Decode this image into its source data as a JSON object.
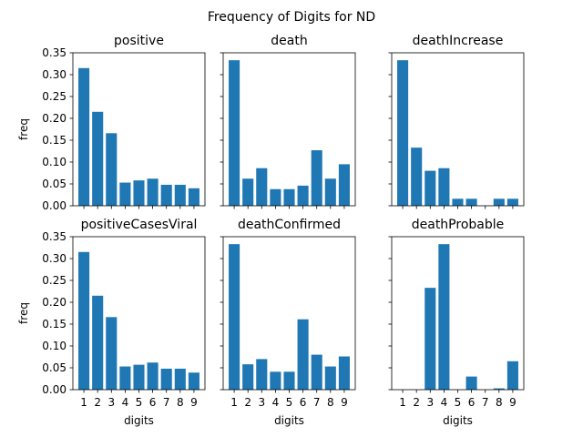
{
  "title": "Frequency of Digits for ND",
  "chart_data": [
    {
      "type": "bar",
      "title": "positive",
      "categories": [
        "1",
        "2",
        "3",
        "4",
        "5",
        "6",
        "7",
        "8",
        "9"
      ],
      "values": [
        0.315,
        0.215,
        0.166,
        0.053,
        0.058,
        0.062,
        0.048,
        0.048,
        0.04
      ],
      "xlabel": "",
      "ylabel": "freq",
      "ylim": [
        0,
        0.35
      ],
      "yticks": [
        "0.00",
        "0.05",
        "0.10",
        "0.15",
        "0.20",
        "0.25",
        "0.30",
        "0.35"
      ],
      "show_ytick_labels": true,
      "show_xtick_labels": false
    },
    {
      "type": "bar",
      "title": "death",
      "categories": [
        "1",
        "2",
        "3",
        "4",
        "5",
        "6",
        "7",
        "8",
        "9"
      ],
      "values": [
        0.333,
        0.062,
        0.086,
        0.038,
        0.038,
        0.046,
        0.127,
        0.062,
        0.095
      ],
      "xlabel": "",
      "ylabel": "",
      "ylim": [
        0,
        0.35
      ],
      "show_ytick_labels": false,
      "show_xtick_labels": false
    },
    {
      "type": "bar",
      "title": "deathIncrease",
      "categories": [
        "1",
        "2",
        "3",
        "4",
        "5",
        "6",
        "7",
        "8",
        "9"
      ],
      "values": [
        0.333,
        0.133,
        0.08,
        0.086,
        0.016,
        0.016,
        0.0,
        0.016,
        0.016
      ],
      "xlabel": "",
      "ylabel": "",
      "ylim": [
        0,
        0.35
      ],
      "show_ytick_labels": false,
      "show_xtick_labels": false
    },
    {
      "type": "bar",
      "title": "positiveCasesViral",
      "categories": [
        "1",
        "2",
        "3",
        "4",
        "5",
        "6",
        "7",
        "8",
        "9"
      ],
      "values": [
        0.315,
        0.215,
        0.166,
        0.053,
        0.057,
        0.062,
        0.048,
        0.048,
        0.039
      ],
      "xlabel": "digits",
      "ylabel": "freq",
      "ylim": [
        0,
        0.35
      ],
      "yticks": [
        "0.00",
        "0.05",
        "0.10",
        "0.15",
        "0.20",
        "0.25",
        "0.30",
        "0.35"
      ],
      "show_ytick_labels": true,
      "show_xtick_labels": true
    },
    {
      "type": "bar",
      "title": "deathConfirmed",
      "categories": [
        "1",
        "2",
        "3",
        "4",
        "5",
        "6",
        "7",
        "8",
        "9"
      ],
      "values": [
        0.333,
        0.058,
        0.07,
        0.041,
        0.041,
        0.161,
        0.08,
        0.053,
        0.076
      ],
      "xlabel": "digits",
      "ylabel": "",
      "ylim": [
        0,
        0.35
      ],
      "show_ytick_labels": false,
      "show_xtick_labels": true
    },
    {
      "type": "bar",
      "title": "deathProbable",
      "categories": [
        "1",
        "2",
        "3",
        "4",
        "5",
        "6",
        "7",
        "8",
        "9"
      ],
      "values": [
        0.0,
        0.0,
        0.233,
        0.333,
        0.0,
        0.03,
        0.0,
        0.003,
        0.065
      ],
      "xlabel": "digits",
      "ylabel": "",
      "ylim": [
        0,
        0.35
      ],
      "show_ytick_labels": false,
      "show_xtick_labels": true
    }
  ],
  "colors": {
    "bar": "#1f77b4",
    "axis": "#000000"
  }
}
